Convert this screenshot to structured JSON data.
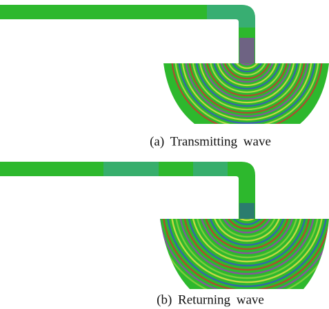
{
  "panels": [
    {
      "caption": "(a) Transmitting wave"
    },
    {
      "caption": "(b) Returning wave"
    }
  ]
}
